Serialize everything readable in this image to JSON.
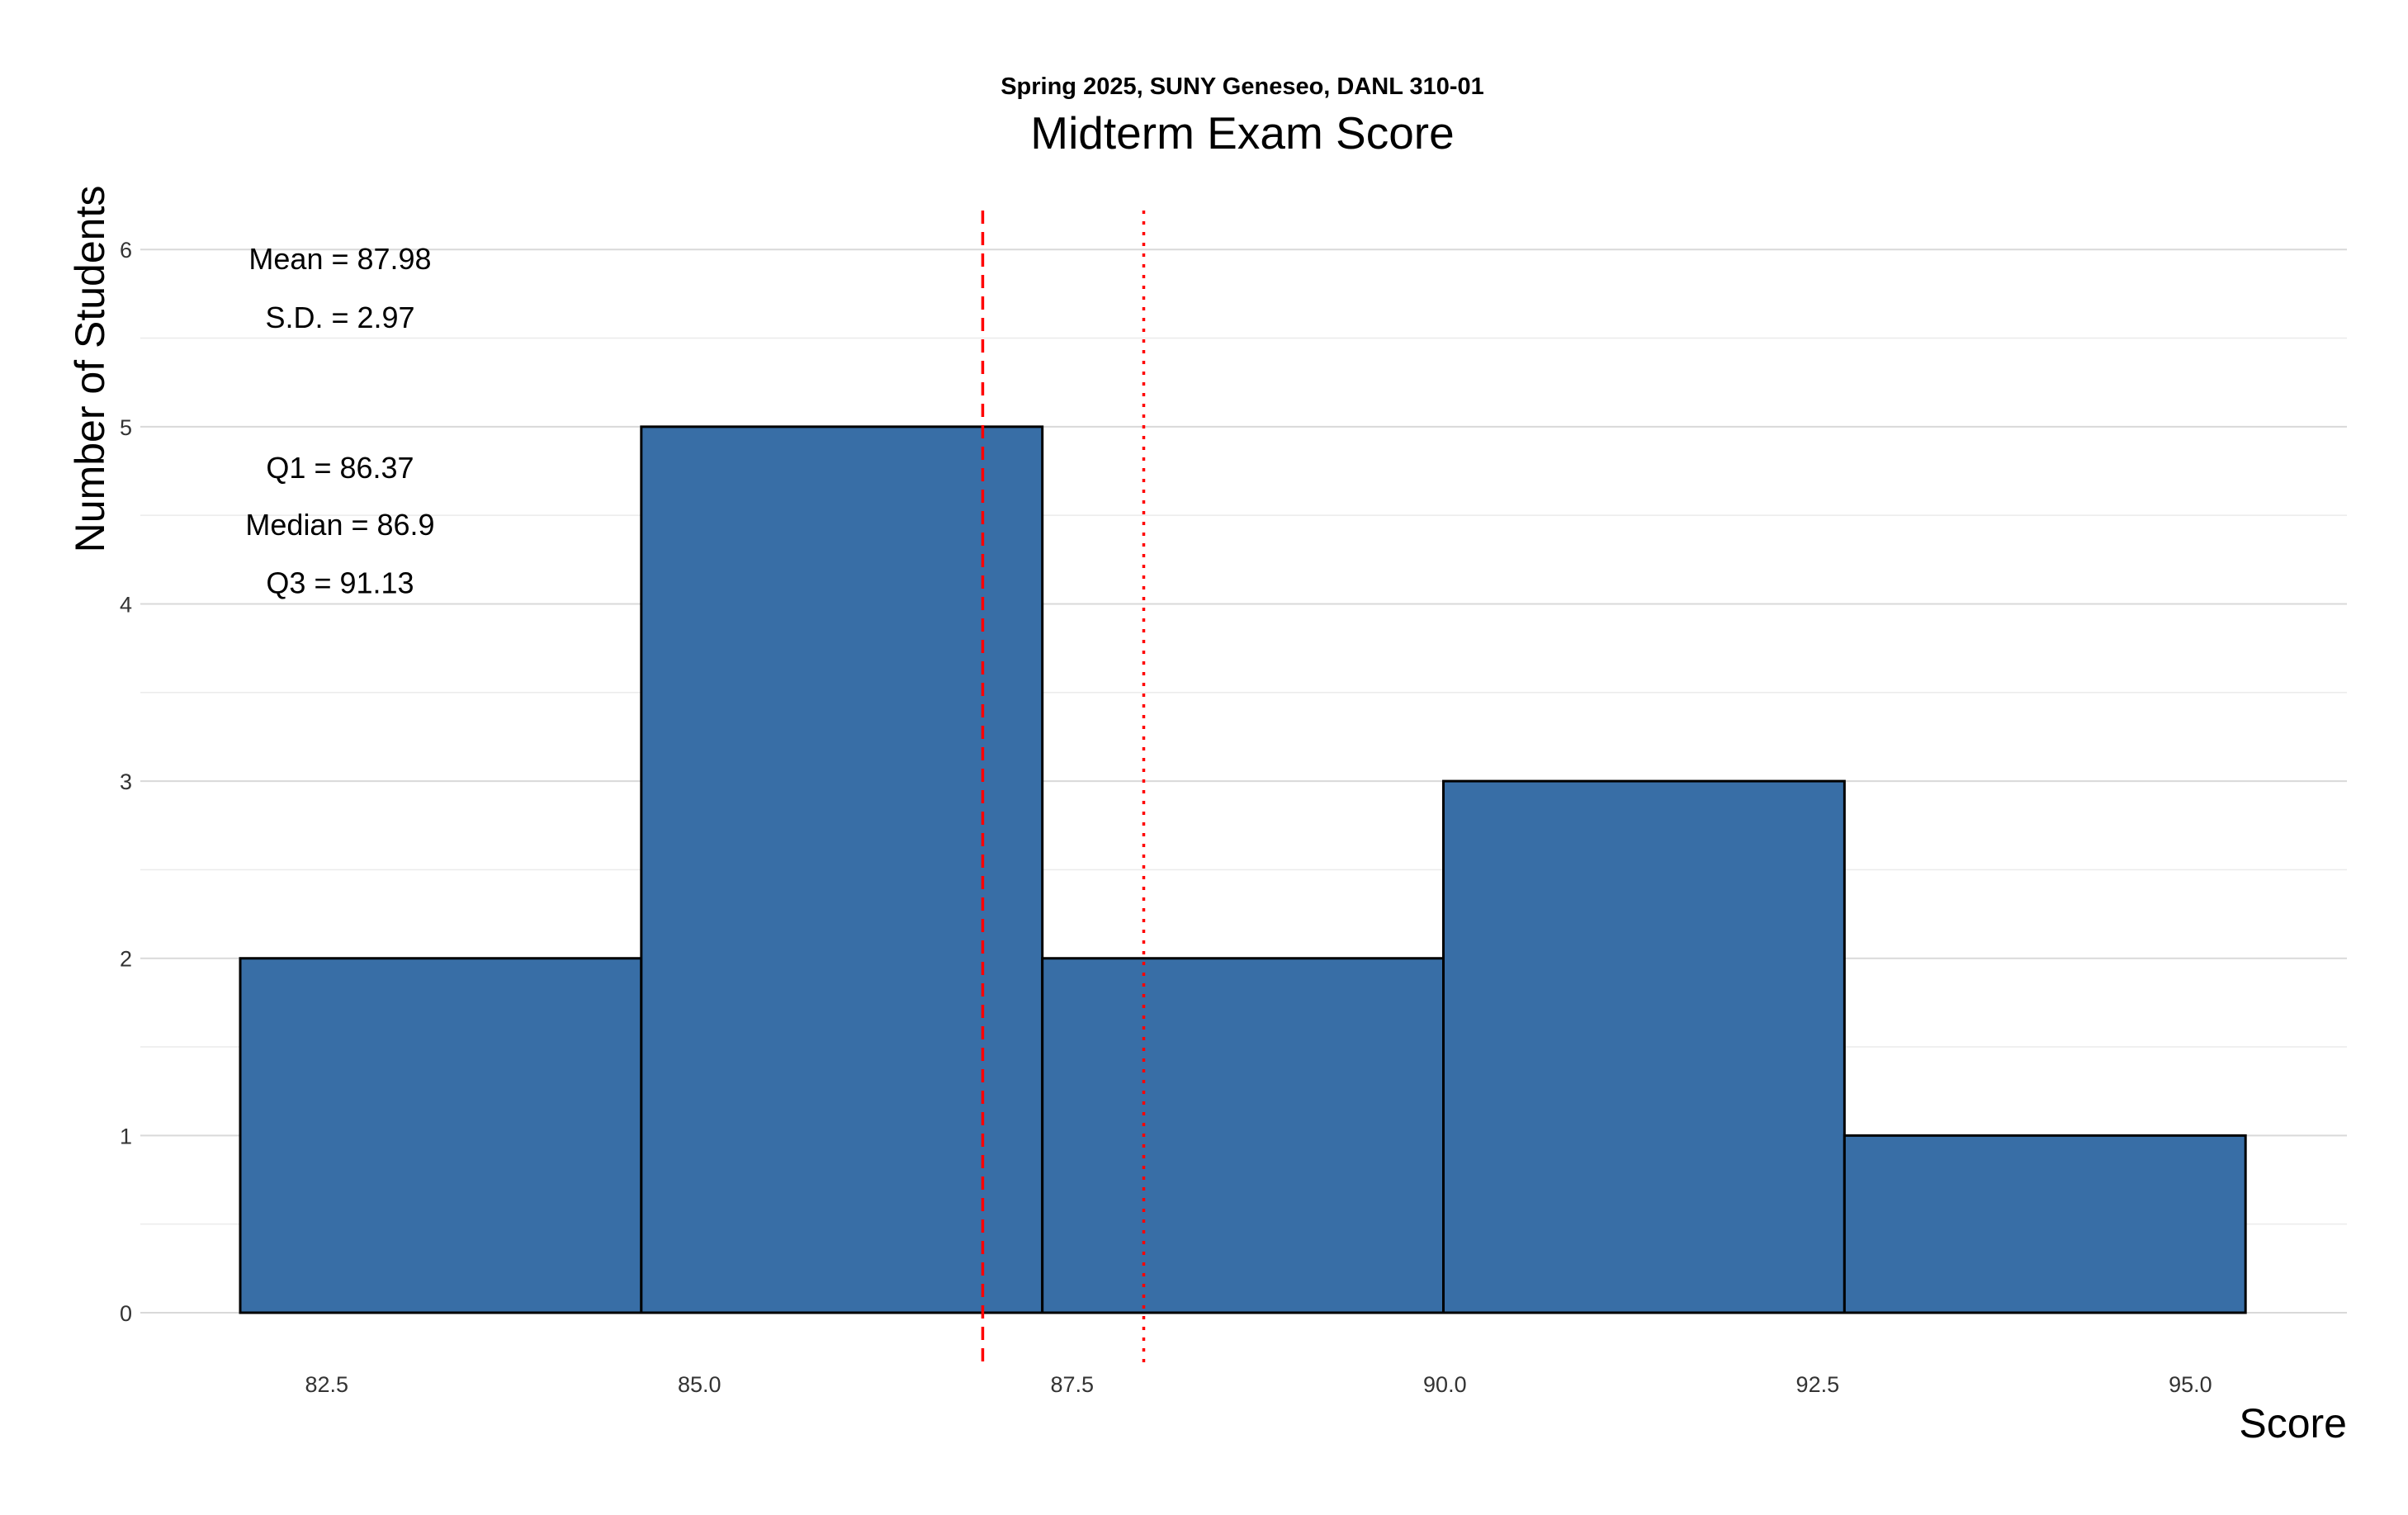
{
  "chart_data": {
    "type": "bar",
    "subtitle": "Spring 2025, SUNY Geneseo, DANL 310-01",
    "title": "Midterm Exam Score",
    "xlabel": "Score",
    "ylabel": "Number of Students",
    "bins": [
      {
        "x0": 81.92,
        "x1": 84.61,
        "count": 2
      },
      {
        "x0": 84.61,
        "x1": 87.3,
        "count": 5
      },
      {
        "x0": 87.3,
        "x1": 89.99,
        "count": 2
      },
      {
        "x0": 89.99,
        "x1": 92.68,
        "count": 3
      },
      {
        "x0": 92.68,
        "x1": 95.37,
        "count": 1
      }
    ],
    "xlim": [
      81.25,
      96.05
    ],
    "ylim": [
      0,
      6.22
    ],
    "x_ticks": [
      82.5,
      85.0,
      87.5,
      90.0,
      92.5,
      95.0
    ],
    "x_tick_labels": [
      "82.5",
      "85.0",
      "87.5",
      "90.0",
      "92.5",
      "95.0"
    ],
    "y_ticks": [
      0,
      1,
      2,
      3,
      4,
      5,
      6
    ],
    "y_tick_labels": [
      "0",
      "1",
      "2",
      "3",
      "4",
      "5",
      "6"
    ],
    "grid": true,
    "bar_fill": "#386ea6",
    "bar_outline": "#000000",
    "reference_lines": [
      {
        "x": 86.9,
        "style": "dashed",
        "color": "#ff0000"
      },
      {
        "x": 87.98,
        "style": "dotted",
        "color": "#ff0000"
      }
    ],
    "annotations": [
      {
        "label": "Mean = 87.98",
        "y": 5.95
      },
      {
        "label": "S.D. = 2.97",
        "y": 5.62
      },
      {
        "label": "Q1 = 86.37",
        "y": 4.77
      },
      {
        "label": "Median = 86.9",
        "y": 4.45
      },
      {
        "label": "Q3 = 91.13",
        "y": 4.12
      }
    ]
  }
}
